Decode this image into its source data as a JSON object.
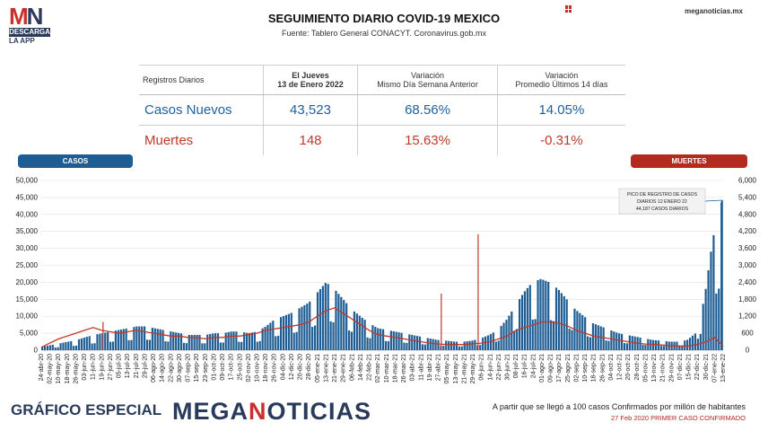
{
  "logo": {
    "mn_m": "M",
    "mn_n": "N",
    "descarga": "DESCARGA",
    "app": "LA APP"
  },
  "header": {
    "title": "SEGUIMIENTO DIARIO COVID-19 MEXICO",
    "source": "Fuente: Tablero General CONACYT. Coronavirus.gob.mx",
    "site": "meganoticias.mx"
  },
  "table": {
    "headers": [
      "Registros Diarios",
      "El Jueves",
      "13 de Enero 2022",
      "Variación",
      "Mismo Día Semana Anterior",
      "Variación",
      "Promedio Últimos 14 días"
    ],
    "rows": [
      {
        "label": "Casos Nuevos",
        "value": "43,523",
        "weekly": "68.56%",
        "avg14": "14.05%"
      },
      {
        "label": "Muertes",
        "value": "148",
        "weekly": "15.63%",
        "avg14": "-0.31%"
      }
    ]
  },
  "pills": {
    "casos": "CASOS",
    "muertes": "MUERTES"
  },
  "annotation": [
    "PICO DE REGISTRO DE CASOS",
    "DIARIOS 12 ENERO 22",
    "44,187 CASOS DIARIOS"
  ],
  "footer": {
    "left": "GRÁFICO ESPECIAL",
    "brand_main": "MEGANOTICIAS",
    "brand_accent": "N",
    "note1": "A partir que se llegó a 100 casos Confirmados por millón de habitantes",
    "note2": "27 Feb 2020 PRIMER CASO CONFIRMADO"
  },
  "colors": {
    "cases": "#1d5d93",
    "deaths": "#c0392b",
    "brand": "#2a3a5a",
    "accent": "#c9302c"
  },
  "chart_data": {
    "type": "bar",
    "x": [
      "24-abr-20",
      "02-may-20",
      "10-may-20",
      "18-may-20",
      "26-may-20",
      "03-jun-20",
      "11-jun-20",
      "19-jun-20",
      "27-jun-20",
      "05-jul-20",
      "13-jul-20",
      "21-jul-20",
      "29-jul-20",
      "06-ago-20",
      "14-ago-20",
      "22-ago-20",
      "30-ago-20",
      "07-sep-20",
      "15-sep-20",
      "23-sep-20",
      "01-oct-20",
      "09-oct-20",
      "17-oct-20",
      "25-oct-20",
      "02-nov-20",
      "10-nov-20",
      "18-nov-20",
      "26-nov-20",
      "04-dic-20",
      "12-dic-20",
      "20-dic-20",
      "28-dic-20",
      "05-ene-21",
      "13-ene-21",
      "21-ene-21",
      "29-ene-21",
      "06-feb-21",
      "14-feb-21",
      "22-feb-21",
      "02-mar-21",
      "10-mar-21",
      "18-mar-21",
      "26-mar-21",
      "03-abr-21",
      "11-abr-21",
      "19-abr-21",
      "27-abr-21",
      "05-may-21",
      "13-may-21",
      "21-may-21",
      "29-may-21",
      "06-jun-21",
      "14-jun-21",
      "22-jun-21",
      "30-jun-21",
      "08-jul-21",
      "16-jul-21",
      "24-jul-21",
      "01-ago-21",
      "09-ago-21",
      "17-ago-21",
      "25-ago-21",
      "02-sep-21",
      "10-sep-21",
      "18-sep-21",
      "26-sep-21",
      "04-oct-21",
      "12-oct-21",
      "20-oct-21",
      "28-oct-21",
      "05-nov-21",
      "13-nov-21",
      "21-nov-21",
      "29-nov-21",
      "07-dic-21",
      "15-dic-21",
      "23-dic-21",
      "31-dic-21",
      "08-ene-22",
      "13-ene-22"
    ],
    "xticks": [
      "24-abr-20",
      "02-may-20",
      "10-may-20",
      "18-may-20",
      "26-may-20",
      "03-jun-20",
      "11-jun-20",
      "19-jun-20",
      "27-jun-20",
      "05-jul-20",
      "13-jul-20",
      "21-jul-20",
      "29-jul-20",
      "06-ago-20",
      "14-ago-20",
      "22-ago-20",
      "30-ago-20",
      "07-sep-20",
      "15-sep-20",
      "23-sep-20",
      "01-oct-20",
      "09-oct-20",
      "17-oct-20",
      "25-oct-20",
      "02-nov-20",
      "10-nov-20",
      "18-nov-20",
      "26-nov-20",
      "04-dic-20",
      "12-dic-20",
      "20-dic-20",
      "28-dic-20",
      "05-ene-21",
      "13-ene-21",
      "21-ene-21",
      "29-ene-21",
      "06-feb-21",
      "14-feb-21",
      "22-feb-21",
      "02-mar-21",
      "10-mar-21",
      "18-mar-21",
      "26-mar-21",
      "03-abr-21",
      "11-abr-21",
      "19-abr-21",
      "27-abr-21",
      "05-may-21",
      "13-may-21",
      "21-may-21",
      "29-may-21",
      "06-jun-21",
      "14-jun-21",
      "22-jun-21",
      "30-jun-21",
      "08-jul-21",
      "16-jul-21",
      "24-jul-21",
      "01-ago-21",
      "09-ago-21",
      "17-ago-21",
      "25-ago-21",
      "02-sep-21",
      "10-sep-21",
      "18-sep-21",
      "26-sep-21",
      "04-oct-21",
      "12-oct-21",
      "20-oct-21",
      "28-oct-21",
      "05-nov-21",
      "13-nov-21",
      "21-nov-21",
      "29-nov-21",
      "07-dic-21",
      "15-dic-21",
      "22-dic-21",
      "30-dic-21",
      "07-ene-22",
      "13-ene-22"
    ],
    "series": [
      {
        "name": "CASOS",
        "axis": "left",
        "values": [
          1000,
          1500,
          2000,
          2500,
          3000,
          3800,
          4500,
          5000,
          5500,
          6000,
          6500,
          7000,
          7000,
          6500,
          6000,
          5500,
          5000,
          4500,
          4500,
          4500,
          5000,
          5000,
          5500,
          5500,
          5000,
          5500,
          7000,
          9000,
          10000,
          11000,
          12500,
          14000,
          17000,
          20000,
          18000,
          15000,
          12000,
          10000,
          8000,
          6500,
          6000,
          5500,
          5000,
          4500,
          4000,
          3500,
          3000,
          2800,
          2500,
          2500,
          2800,
          3500,
          4500,
          6000,
          9000,
          13000,
          17000,
          20000,
          21000,
          20000,
          18000,
          15000,
          12000,
          10000,
          8000,
          7000,
          6000,
          5000,
          4500,
          4000,
          3500,
          3000,
          2800,
          2500,
          2500,
          3000,
          5000,
          15000,
          33000,
          43523
        ]
      },
      {
        "name": "MUERTES",
        "axis": "right",
        "values": [
          100,
          250,
          400,
          500,
          600,
          700,
          800,
          700,
          650,
          600,
          650,
          700,
          650,
          600,
          550,
          500,
          500,
          450,
          450,
          400,
          450,
          450,
          500,
          500,
          550,
          600,
          700,
          750,
          800,
          850,
          900,
          1000,
          1200,
          1400,
          1500,
          1300,
          1100,
          900,
          700,
          550,
          500,
          450,
          400,
          350,
          300,
          250,
          220,
          200,
          200,
          200,
          230,
          250,
          300,
          400,
          500,
          700,
          800,
          900,
          1000,
          1000,
          950,
          850,
          700,
          600,
          500,
          450,
          400,
          350,
          300,
          250,
          220,
          200,
          180,
          150,
          150,
          150,
          200,
          300,
          450,
          148
        ]
      }
    ],
    "spikes": [
      {
        "x": "20-jun-20",
        "axis": "right",
        "value": 1000
      },
      {
        "x": "28-abr-21",
        "axis": "right",
        "value": 2000
      },
      {
        "x": "01-jun-21",
        "axis": "right",
        "value": 4100
      }
    ],
    "peak": {
      "x": "12-ene-22",
      "value": 44187
    },
    "y_left": {
      "min": 0,
      "max": 50000,
      "ticks": [
        "0",
        "5,000",
        "10,000",
        "15,000",
        "20,000",
        "25,000",
        "30,000",
        "35,000",
        "40,000",
        "45,000",
        "50,000"
      ]
    },
    "y_right": {
      "min": 0,
      "max": 6000,
      "ticks": [
        "0",
        "600",
        "1,200",
        "1,800",
        "2,400",
        "3,000",
        "3,600",
        "4,200",
        "4,800",
        "5,400",
        "6,000"
      ]
    },
    "grid": true
  }
}
